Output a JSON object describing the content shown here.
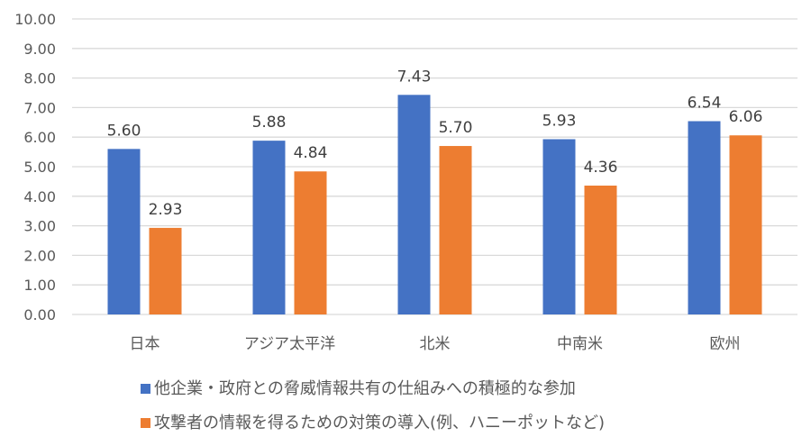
{
  "chart_data": {
    "type": "bar",
    "title": "",
    "xlabel": "",
    "ylabel": "",
    "ylim": [
      0,
      10
    ],
    "yticks": [
      "0.00",
      "1.00",
      "2.00",
      "3.00",
      "4.00",
      "5.00",
      "6.00",
      "7.00",
      "8.00",
      "9.00",
      "10.00"
    ],
    "grid": true,
    "legend_position": "bottom",
    "categories": [
      "日本",
      "アジア太平洋",
      "北米",
      "中南米",
      "欧州"
    ],
    "series": [
      {
        "name": "他企業・政府との脅威情報共有の仕組みへの積極的な参加",
        "color": "#4472C4",
        "values": [
          5.6,
          5.88,
          7.43,
          5.93,
          6.54
        ]
      },
      {
        "name": "攻撃者の情報を得るための対策の導入(例、ハニーポットなど)",
        "color": "#ED7D31",
        "values": [
          2.93,
          4.84,
          5.7,
          4.36,
          6.06
        ]
      }
    ]
  }
}
